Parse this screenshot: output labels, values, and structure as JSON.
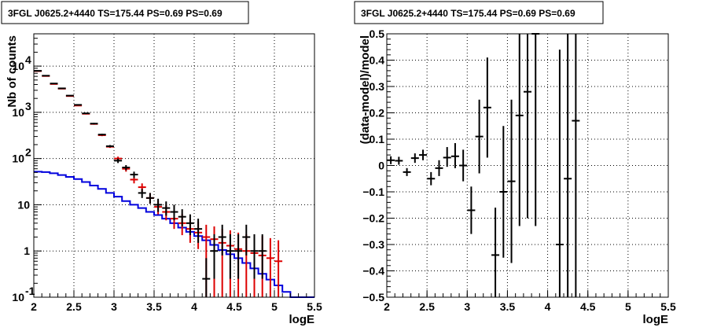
{
  "chart_data": [
    {
      "type": "line",
      "title": "3FGL J0625.2+4440 TS=175.44 PS=0.69 PS=0.69",
      "xlabel": "logE",
      "ylabel": "Nb of counts",
      "xlim": [
        2,
        5.5
      ],
      "ylim": [
        0.1,
        50000
      ],
      "yscale": "log",
      "grid": true,
      "x_ticks": [
        "2",
        "2.5",
        "3",
        "3.5",
        "4",
        "4.5",
        "5",
        "5.5"
      ],
      "y_ticks": [
        {
          "value": 0.1,
          "base": "10",
          "exp": "-1"
        },
        {
          "value": 1,
          "base": "1",
          "exp": ""
        },
        {
          "value": 10,
          "base": "10",
          "exp": ""
        },
        {
          "value": 100,
          "base": "10",
          "exp": "2"
        },
        {
          "value": 1000,
          "base": "10",
          "exp": "3"
        },
        {
          "value": 10000,
          "base": "10",
          "exp": "4"
        }
      ],
      "colors": {
        "data": "#000000",
        "model_points": "#dd0000",
        "model_hist": "#0000dd"
      },
      "series": [
        {
          "kind": "errorbar",
          "color": "#000000",
          "points": [
            {
              "x": 2.05,
              "y": 7900,
              "lo": 7800,
              "hi": 8000
            },
            {
              "x": 2.15,
              "y": 6200,
              "lo": 6100,
              "hi": 6300
            },
            {
              "x": 2.25,
              "y": 4200,
              "lo": 4130,
              "hi": 4270
            },
            {
              "x": 2.35,
              "y": 3300,
              "lo": 3240,
              "hi": 3360
            },
            {
              "x": 2.45,
              "y": 2300,
              "lo": 2250,
              "hi": 2350
            },
            {
              "x": 2.55,
              "y": 1450,
              "lo": 1410,
              "hi": 1490
            },
            {
              "x": 2.65,
              "y": 950,
              "lo": 920,
              "hi": 980
            },
            {
              "x": 2.75,
              "y": 570,
              "lo": 550,
              "hi": 590
            },
            {
              "x": 2.85,
              "y": 330,
              "lo": 315,
              "hi": 345
            },
            {
              "x": 2.95,
              "y": 185,
              "lo": 175,
              "hi": 196
            },
            {
              "x": 3.05,
              "y": 90,
              "lo": 80,
              "hi": 100
            },
            {
              "x": 3.15,
              "y": 64,
              "lo": 56,
              "hi": 72
            },
            {
              "x": 3.25,
              "y": 45,
              "lo": 38,
              "hi": 52
            },
            {
              "x": 3.35,
              "y": 18,
              "lo": 14,
              "hi": 22
            },
            {
              "x": 3.45,
              "y": 14,
              "lo": 10.5,
              "hi": 18
            },
            {
              "x": 3.55,
              "y": 10,
              "lo": 7,
              "hi": 13.5
            },
            {
              "x": 3.65,
              "y": 8.5,
              "lo": 5.8,
              "hi": 11.8
            },
            {
              "x": 3.75,
              "y": 7,
              "lo": 4.6,
              "hi": 10
            },
            {
              "x": 3.85,
              "y": 5.5,
              "lo": 3.4,
              "hi": 8
            },
            {
              "x": 3.95,
              "y": 4,
              "lo": 2.2,
              "hi": 6.2
            },
            {
              "x": 4.05,
              "y": 3,
              "lo": 1.5,
              "hi": 5
            },
            {
              "x": 4.15,
              "y": 0.25,
              "lo": 0.1,
              "hi": 0.7
            },
            {
              "x": 4.25,
              "y": 1,
              "lo": 0.25,
              "hi": 2.3
            },
            {
              "x": 4.35,
              "y": 2,
              "lo": 0.8,
              "hi": 3.7
            },
            {
              "x": 4.45,
              "y": 1,
              "lo": 0.25,
              "hi": 2.3
            },
            {
              "x": 4.55,
              "y": 1,
              "lo": 0.25,
              "hi": 2.3
            },
            {
              "x": 4.65,
              "y": 2,
              "lo": 0.8,
              "hi": 3.7
            },
            {
              "x": 4.75,
              "y": 1,
              "lo": 0.25,
              "hi": 2.3
            },
            {
              "x": 4.85,
              "y": 1,
              "lo": 0.25,
              "hi": 2.3
            }
          ]
        },
        {
          "kind": "errorbar",
          "color": "#dd0000",
          "points": [
            {
              "x": 2.05,
              "y": 7800,
              "lo": 7700,
              "hi": 7900
            },
            {
              "x": 2.15,
              "y": 6100,
              "lo": 6000,
              "hi": 6200
            },
            {
              "x": 2.25,
              "y": 4100,
              "lo": 4040,
              "hi": 4160
            },
            {
              "x": 2.35,
              "y": 3250,
              "lo": 3190,
              "hi": 3310
            },
            {
              "x": 2.45,
              "y": 2250,
              "lo": 2200,
              "hi": 2300
            },
            {
              "x": 2.55,
              "y": 1400,
              "lo": 1360,
              "hi": 1440
            },
            {
              "x": 2.65,
              "y": 930,
              "lo": 900,
              "hi": 960
            },
            {
              "x": 2.75,
              "y": 560,
              "lo": 540,
              "hi": 580
            },
            {
              "x": 2.85,
              "y": 320,
              "lo": 305,
              "hi": 335
            },
            {
              "x": 2.95,
              "y": 180,
              "lo": 170,
              "hi": 191
            },
            {
              "x": 3.05,
              "y": 100,
              "lo": 90,
              "hi": 110
            },
            {
              "x": 3.15,
              "y": 60,
              "lo": 52,
              "hi": 68
            },
            {
              "x": 3.25,
              "y": 35,
              "lo": 29,
              "hi": 41
            },
            {
              "x": 3.35,
              "y": 24,
              "lo": 19,
              "hi": 29
            },
            {
              "x": 3.45,
              "y": 14,
              "lo": 10.5,
              "hi": 18
            },
            {
              "x": 3.55,
              "y": 9,
              "lo": 6.2,
              "hi": 12.3
            },
            {
              "x": 3.65,
              "y": 7,
              "lo": 4.6,
              "hi": 10
            },
            {
              "x": 3.75,
              "y": 5,
              "lo": 3,
              "hi": 7.5
            },
            {
              "x": 3.85,
              "y": 4,
              "lo": 2.2,
              "hi": 6.3
            },
            {
              "x": 3.95,
              "y": 3,
              "lo": 1.5,
              "hi": 5
            },
            {
              "x": 4.05,
              "y": 2.5,
              "lo": 1.1,
              "hi": 4.3
            },
            {
              "x": 4.15,
              "y": 2,
              "lo": 0.1,
              "hi": 3.7
            },
            {
              "x": 4.25,
              "y": 1.8,
              "lo": 0.1,
              "hi": 3.4
            },
            {
              "x": 4.35,
              "y": 1.5,
              "lo": 0.1,
              "hi": 3
            },
            {
              "x": 4.45,
              "y": 1.3,
              "lo": 0.1,
              "hi": 2.8
            },
            {
              "x": 4.55,
              "y": 1.1,
              "lo": 0.1,
              "hi": 2.5
            },
            {
              "x": 4.65,
              "y": 1,
              "lo": 0.1,
              "hi": 2.3
            },
            {
              "x": 4.75,
              "y": 0.9,
              "lo": 0.1,
              "hi": 2.2
            },
            {
              "x": 4.85,
              "y": 0.8,
              "lo": 0.1,
              "hi": 2.1
            },
            {
              "x": 4.95,
              "y": 0.7,
              "lo": 0.1,
              "hi": 1.9
            },
            {
              "x": 5.05,
              "y": 0.6,
              "lo": 0.1,
              "hi": 1.7
            }
          ]
        },
        {
          "kind": "step",
          "color": "#0000dd",
          "edges": [
            2.0,
            2.1,
            2.2,
            2.3,
            2.4,
            2.5,
            2.6,
            2.7,
            2.8,
            2.9,
            3.0,
            3.1,
            3.2,
            3.3,
            3.4,
            3.5,
            3.6,
            3.7,
            3.8,
            3.9,
            4.0,
            4.1,
            4.2,
            4.3,
            4.4,
            4.5,
            4.6,
            4.7,
            4.8,
            4.9,
            5.0,
            5.1,
            5.2,
            5.3,
            5.4,
            5.5
          ],
          "values": [
            52,
            51,
            48,
            44,
            40,
            36,
            31,
            26,
            22,
            18,
            15,
            12,
            10,
            8.5,
            7,
            6,
            5,
            4,
            3.2,
            2.6,
            2.1,
            1.7,
            1.35,
            1.05,
            0.85,
            0.7,
            0.55,
            0.42,
            0.32,
            0.24,
            0.18,
            0.13,
            0.1,
            0.1,
            0.1
          ]
        }
      ]
    },
    {
      "type": "scatter",
      "title": "3FGL J0625.2+4440 TS=175.44 PS=0.69 PS=0.69",
      "xlabel": "logE",
      "ylabel": "(data-model)/model",
      "xlim": [
        2,
        5.5
      ],
      "ylim": [
        -0.5,
        0.5
      ],
      "grid": true,
      "x_ticks": [
        "2",
        "2.5",
        "3",
        "3.5",
        "4",
        "4.5",
        "5",
        "5.5"
      ],
      "y_ticks": [
        "−0.5",
        "−0.4",
        "−0.3",
        "−0.2",
        "−0.1",
        "0",
        "0.1",
        "0.2",
        "0.3",
        "0.4",
        "0.5"
      ],
      "series": [
        {
          "kind": "errorbar",
          "color": "#000000",
          "points": [
            {
              "x": 2.05,
              "y": 0.02,
              "lo": 0.005,
              "hi": 0.035
            },
            {
              "x": 2.15,
              "y": 0.018,
              "lo": 0.003,
              "hi": 0.033
            },
            {
              "x": 2.25,
              "y": -0.025,
              "lo": -0.04,
              "hi": -0.01
            },
            {
              "x": 2.35,
              "y": 0.028,
              "lo": 0.01,
              "hi": 0.046
            },
            {
              "x": 2.45,
              "y": 0.04,
              "lo": 0.02,
              "hi": 0.06
            },
            {
              "x": 2.55,
              "y": -0.05,
              "lo": -0.075,
              "hi": -0.025
            },
            {
              "x": 2.65,
              "y": -0.01,
              "lo": -0.04,
              "hi": 0.02
            },
            {
              "x": 2.75,
              "y": 0.03,
              "lo": -0.005,
              "hi": 0.07
            },
            {
              "x": 2.85,
              "y": 0.035,
              "lo": -0.01,
              "hi": 0.085
            },
            {
              "x": 2.95,
              "y": 0.0,
              "lo": -0.06,
              "hi": 0.06
            },
            {
              "x": 3.05,
              "y": -0.17,
              "lo": -0.26,
              "hi": -0.08
            },
            {
              "x": 3.15,
              "y": 0.11,
              "lo": -0.03,
              "hi": 0.25
            },
            {
              "x": 3.25,
              "y": 0.22,
              "lo": 0.03,
              "hi": 0.41
            },
            {
              "x": 3.35,
              "y": -0.34,
              "lo": -0.5,
              "hi": -0.16
            },
            {
              "x": 3.45,
              "y": -0.1,
              "lo": -0.35,
              "hi": 0.15
            },
            {
              "x": 3.55,
              "y": -0.06,
              "lo": -0.37,
              "hi": 0.25
            },
            {
              "x": 3.65,
              "y": 0.19,
              "lo": -0.23,
              "hi": 0.5
            },
            {
              "x": 3.75,
              "y": 0.28,
              "lo": -0.2,
              "hi": 0.5
            },
            {
              "x": 3.85,
              "y": 0.5,
              "lo": -0.23,
              "hi": 0.5
            },
            {
              "x": 4.15,
              "y": -0.3,
              "lo": -0.5,
              "hi": 0.44
            },
            {
              "x": 4.25,
              "y": -0.05,
              "lo": -0.5,
              "hi": 0.5
            },
            {
              "x": 4.35,
              "y": 0.17,
              "lo": -0.5,
              "hi": 0.5
            }
          ]
        }
      ]
    }
  ]
}
